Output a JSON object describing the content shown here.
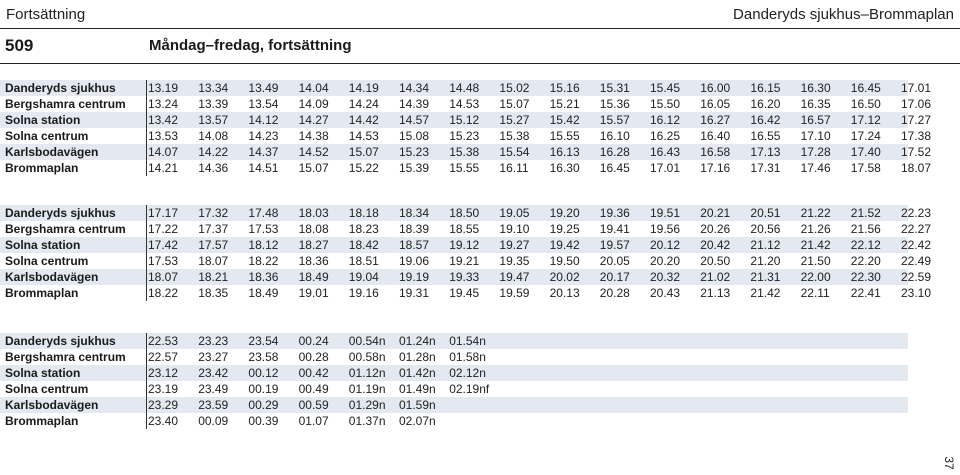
{
  "header": {
    "left": "Fortsättning",
    "right": "Danderyds sjukhus–Brommaplan",
    "route": "509",
    "days": "Måndag–fredag, fortsättning"
  },
  "page_number": "37",
  "blocks": [
    {
      "rows": [
        {
          "stop": "Danderyds sjukhus",
          "times": [
            "13.19",
            "13.34",
            "13.49",
            "14.04",
            "14.19",
            "14.34",
            "14.48",
            "15.02",
            "15.16",
            "15.31",
            "15.45",
            "16.00",
            "16.15",
            "16.30",
            "16.45",
            "17.01"
          ]
        },
        {
          "stop": "Bergshamra centrum",
          "times": [
            "13.24",
            "13.39",
            "13.54",
            "14.09",
            "14.24",
            "14.39",
            "14.53",
            "15.07",
            "15.21",
            "15.36",
            "15.50",
            "16.05",
            "16.20",
            "16.35",
            "16.50",
            "17.06"
          ]
        },
        {
          "stop": "Solna station",
          "times": [
            "13.42",
            "13.57",
            "14.12",
            "14.27",
            "14.42",
            "14.57",
            "15.12",
            "15.27",
            "15.42",
            "15.57",
            "16.12",
            "16.27",
            "16.42",
            "16.57",
            "17.12",
            "17.27"
          ]
        },
        {
          "stop": "Solna centrum",
          "times": [
            "13.53",
            "14.08",
            "14.23",
            "14.38",
            "14.53",
            "15.08",
            "15.23",
            "15.38",
            "15.55",
            "16.10",
            "16.25",
            "16.40",
            "16.55",
            "17.10",
            "17.24",
            "17.38"
          ]
        },
        {
          "stop": "Karlsbodavägen",
          "times": [
            "14.07",
            "14.22",
            "14.37",
            "14.52",
            "15.07",
            "15.23",
            "15.38",
            "15.54",
            "16.13",
            "16.28",
            "16.43",
            "16.58",
            "17.13",
            "17.28",
            "17.40",
            "17.52"
          ]
        },
        {
          "stop": "Brommaplan",
          "times": [
            "14.21",
            "14.36",
            "14.51",
            "15.07",
            "15.22",
            "15.39",
            "15.55",
            "16.11",
            "16.30",
            "16.45",
            "17.01",
            "17.16",
            "17.31",
            "17.46",
            "17.58",
            "18.07"
          ]
        }
      ]
    },
    {
      "rows": [
        {
          "stop": "Danderyds sjukhus",
          "times": [
            "17.17",
            "17.32",
            "17.48",
            "18.03",
            "18.18",
            "18.34",
            "18.50",
            "19.05",
            "19.20",
            "19.36",
            "19.51",
            "20.21",
            "20.51",
            "21.22",
            "21.52",
            "22.23"
          ]
        },
        {
          "stop": "Bergshamra centrum",
          "times": [
            "17.22",
            "17.37",
            "17.53",
            "18.08",
            "18.23",
            "18.39",
            "18.55",
            "19.10",
            "19.25",
            "19.41",
            "19.56",
            "20.26",
            "20.56",
            "21.26",
            "21.56",
            "22.27"
          ]
        },
        {
          "stop": "Solna station",
          "times": [
            "17.42",
            "17.57",
            "18.12",
            "18.27",
            "18.42",
            "18.57",
            "19.12",
            "19.27",
            "19.42",
            "19.57",
            "20.12",
            "20.42",
            "21.12",
            "21.42",
            "22.12",
            "22.42"
          ]
        },
        {
          "stop": "Solna centrum",
          "times": [
            "17.53",
            "18.07",
            "18.22",
            "18.36",
            "18.51",
            "19.06",
            "19.21",
            "19.35",
            "19.50",
            "20.05",
            "20.20",
            "20.50",
            "21.20",
            "21.50",
            "22.20",
            "22.49"
          ]
        },
        {
          "stop": "Karlsbodavägen",
          "times": [
            "18.07",
            "18.21",
            "18.36",
            "18.49",
            "19.04",
            "19.19",
            "19.33",
            "19.47",
            "20.02",
            "20.17",
            "20.32",
            "21.02",
            "21.31",
            "22.00",
            "22.30",
            "22.59"
          ]
        },
        {
          "stop": "Brommaplan",
          "times": [
            "18.22",
            "18.35",
            "18.49",
            "19.01",
            "19.16",
            "19.31",
            "19.45",
            "19.59",
            "20.13",
            "20.28",
            "20.43",
            "21.13",
            "21.42",
            "22.11",
            "22.41",
            "23.10"
          ]
        }
      ]
    },
    {
      "rows": [
        {
          "stop": "Danderyds sjukhus",
          "times": [
            "22.53",
            "23.23",
            "23.54",
            "00.24",
            "00.54n",
            "01.24n",
            "01.54n"
          ]
        },
        {
          "stop": "Bergshamra centrum",
          "times": [
            "22.57",
            "23.27",
            "23.58",
            "00.28",
            "00.58n",
            "01.28n",
            "01.58n"
          ]
        },
        {
          "stop": "Solna station",
          "times": [
            "23.12",
            "23.42",
            "00.12",
            "00.42",
            "01.12n",
            "01.42n",
            "02.12n"
          ]
        },
        {
          "stop": "Solna centrum",
          "times": [
            "23.19",
            "23.49",
            "00.19",
            "00.49",
            "01.19n",
            "01.49n",
            "02.19nf"
          ]
        },
        {
          "stop": "Karlsbodavägen",
          "times": [
            "23.29",
            "23.59",
            "00.29",
            "00.59",
            "01.29n",
            "01.59n"
          ]
        },
        {
          "stop": "Brommaplan",
          "times": [
            "23.40",
            "00.09",
            "00.39",
            "01.07",
            "01.37n",
            "02.07n"
          ]
        }
      ]
    }
  ]
}
